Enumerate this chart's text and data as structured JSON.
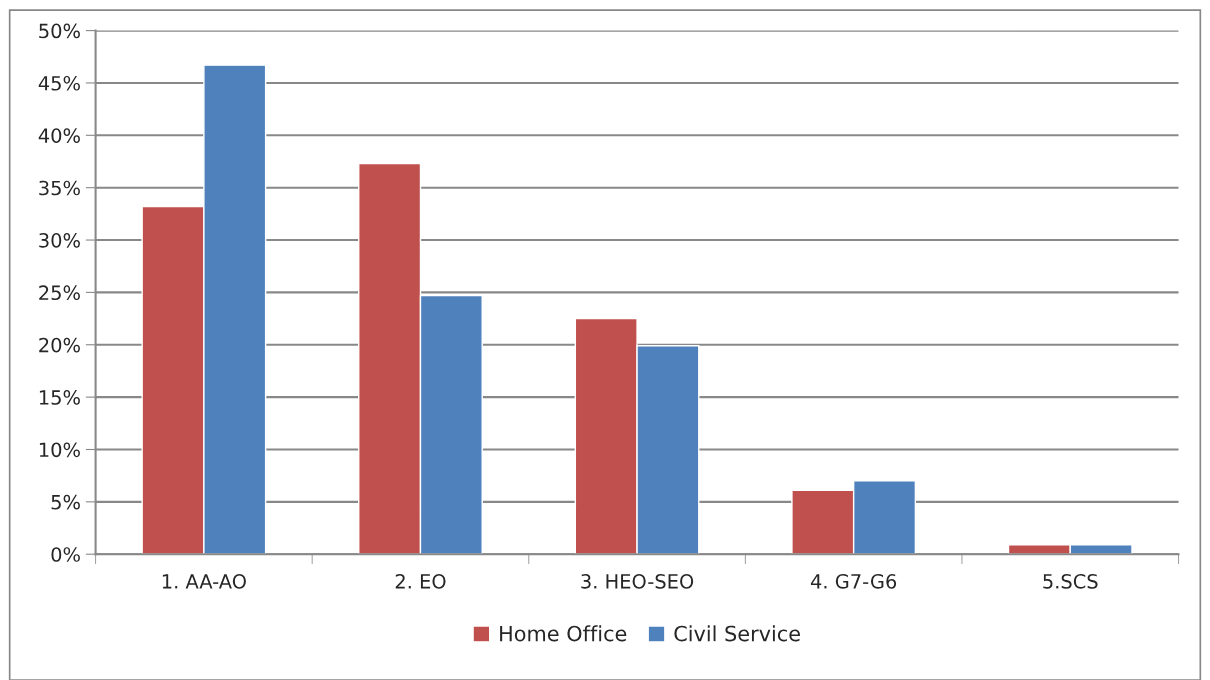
{
  "chart_data": {
    "type": "bar",
    "categories": [
      "1. AA-AO",
      "2. EO",
      "3. HEO-SEO",
      "4. G7-G6",
      "5.SCS"
    ],
    "series": [
      {
        "name": "Home Office",
        "color": "#c0504d",
        "values": [
          33.2,
          37.3,
          22.5,
          6.1,
          0.9
        ]
      },
      {
        "name": "Civil Service",
        "color": "#4f81bd",
        "values": [
          46.7,
          24.7,
          19.9,
          7.0,
          0.9
        ]
      }
    ],
    "ylim": [
      0,
      50
    ],
    "yticks": [
      {
        "value": 0,
        "label": "0%"
      },
      {
        "value": 5,
        "label": "5%"
      },
      {
        "value": 10,
        "label": "10%"
      },
      {
        "value": 15,
        "label": "15%"
      },
      {
        "value": 20,
        "label": "20%"
      },
      {
        "value": 25,
        "label": "25%"
      },
      {
        "value": 30,
        "label": "30%"
      },
      {
        "value": 35,
        "label": "35%"
      },
      {
        "value": 40,
        "label": "40%"
      },
      {
        "value": 45,
        "label": "45%"
      },
      {
        "value": 50,
        "label": "50%"
      }
    ],
    "grid": "y",
    "legend": "bottom"
  }
}
